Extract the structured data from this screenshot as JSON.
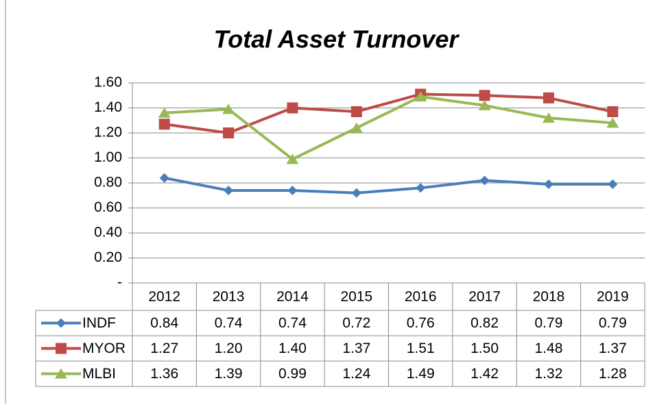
{
  "chart_data": {
    "type": "line",
    "title": "Total Asset Turnover",
    "categories": [
      "2012",
      "2013",
      "2014",
      "2015",
      "2016",
      "2017",
      "2018",
      "2019"
    ],
    "series": [
      {
        "name": "INDF",
        "color": "#4a7ebb",
        "marker": "diamond",
        "values": [
          0.84,
          0.74,
          0.74,
          0.72,
          0.76,
          0.82,
          0.79,
          0.79
        ],
        "value_labels": [
          "0.84",
          "0.74",
          "0.74",
          "0.72",
          "0.76",
          "0.82",
          "0.79",
          "0.79"
        ]
      },
      {
        "name": "MYOR",
        "color": "#be4b48",
        "marker": "square",
        "values": [
          1.27,
          1.2,
          1.4,
          1.37,
          1.51,
          1.5,
          1.48,
          1.37
        ],
        "value_labels": [
          "1.27",
          "1.20",
          "1.40",
          "1.37",
          "1.51",
          "1.50",
          "1.48",
          "1.37"
        ]
      },
      {
        "name": "MLBI",
        "color": "#98b954",
        "marker": "triangle",
        "values": [
          1.36,
          1.39,
          0.99,
          1.24,
          1.49,
          1.42,
          1.32,
          1.28
        ],
        "value_labels": [
          "1.36",
          "1.39",
          "0.99",
          "1.24",
          "1.49",
          "1.42",
          "1.32",
          "1.28"
        ]
      }
    ],
    "ylim": [
      0,
      1.6
    ],
    "yticks": [
      {
        "value": 0,
        "label": "-"
      },
      {
        "value": 0.2,
        "label": "0.20"
      },
      {
        "value": 0.4,
        "label": "0.40"
      },
      {
        "value": 0.6,
        "label": "0.60"
      },
      {
        "value": 0.8,
        "label": "0.80"
      },
      {
        "value": 1.0,
        "label": "1.00"
      },
      {
        "value": 1.2,
        "label": "1.20"
      },
      {
        "value": 1.4,
        "label": "1.40"
      },
      {
        "value": 1.6,
        "label": "1.60"
      }
    ],
    "grid": true
  }
}
